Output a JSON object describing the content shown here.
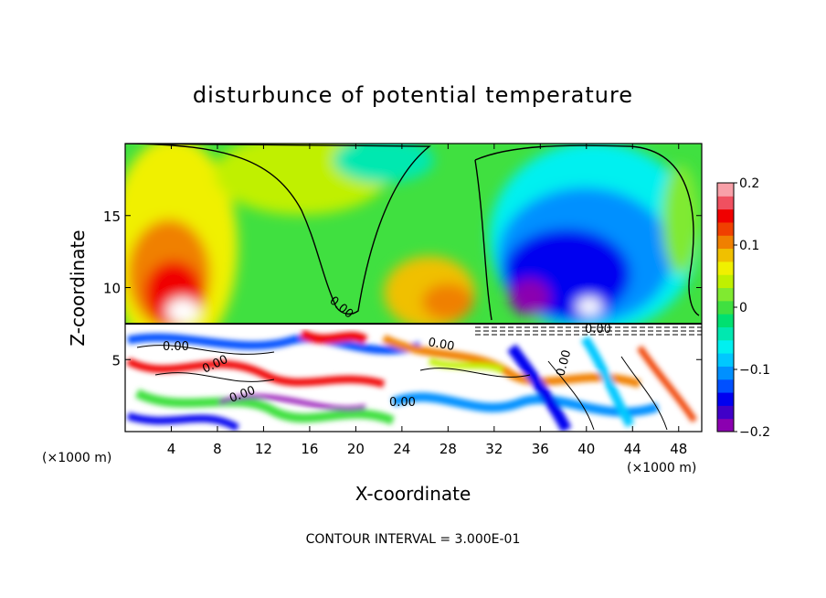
{
  "chart_data": {
    "type": "heatmap",
    "title": "disturbunce of potential temperature",
    "xlabel": "X-coordinate",
    "ylabel": "Z-coordinate",
    "x_unit_label": "(×1000 m)",
    "y_unit_label": "(×1000 m)",
    "xlim": [
      0,
      50
    ],
    "ylim": [
      0,
      20
    ],
    "x_ticks": [
      "4",
      "8",
      "12",
      "16",
      "20",
      "24",
      "28",
      "32",
      "36",
      "40",
      "44",
      "48"
    ],
    "y_ticks": [
      "5",
      "10",
      "15"
    ],
    "colorbar": {
      "range": [
        -0.2,
        0.2
      ],
      "tick_labels": [
        "0.2",
        "0.1",
        "0",
        "−0.1",
        "−0.2"
      ],
      "colors": [
        "#8b00b0",
        "#4000c8",
        "#0000f0",
        "#0050ff",
        "#0090ff",
        "#00c8ff",
        "#00f0f0",
        "#00e8b0",
        "#00e070",
        "#40e040",
        "#80ea30",
        "#c0f000",
        "#f0f000",
        "#f0c000",
        "#f08000",
        "#f04000",
        "#f00000",
        "#f05060",
        "#f8a0a8"
      ]
    },
    "contour_labels": [
      "0.00",
      "0.00",
      "0.00",
      "0.00",
      "0.00",
      "0.00",
      "0.00",
      "0.00"
    ],
    "annotation": "CONTOUR INTERVAL = 3.000E-01"
  }
}
